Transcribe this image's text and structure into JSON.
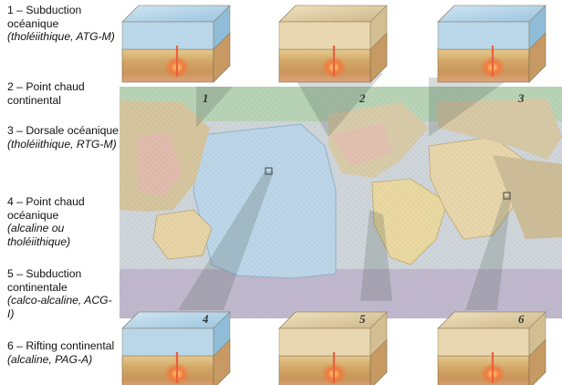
{
  "legend": [
    {
      "number": "1",
      "title": "Subduction océanique",
      "subtitle": "(tholéiithique, ATG-M)"
    },
    {
      "number": "2",
      "title": "Point chaud continental",
      "subtitle": ""
    },
    {
      "number": "3",
      "title": "Dorsale océanique",
      "subtitle": "(tholéiithique, RTG-M)"
    },
    {
      "number": "4",
      "title": "Point chaud océanique",
      "subtitle": "(alcaline ou tholéiithique)"
    },
    {
      "number": "5",
      "title": "Subduction continentale",
      "subtitle": "(calco-alcaline, ACG-I)"
    },
    {
      "number": "6",
      "title": "Rifting continental",
      "subtitle": "(alcaline, PAG-A)"
    }
  ],
  "blocks": [
    {
      "label": "1",
      "type": "ocean-subduction"
    },
    {
      "label": "2",
      "type": "continental-hotspot"
    },
    {
      "label": "3",
      "type": "ocean-ridge"
    },
    {
      "label": "4",
      "type": "ocean-hotspot"
    },
    {
      "label": "5",
      "type": "continental-subduction"
    },
    {
      "label": "6",
      "type": "continental-rift"
    }
  ],
  "colors": {
    "ocean": "#b9d7e8",
    "land": "#d9c79a",
    "hotspot": "#e8603c",
    "map_pacific": "#bcd3e6",
    "map_green_band": "#a9cfa8",
    "map_purple": "#b9aec8"
  }
}
